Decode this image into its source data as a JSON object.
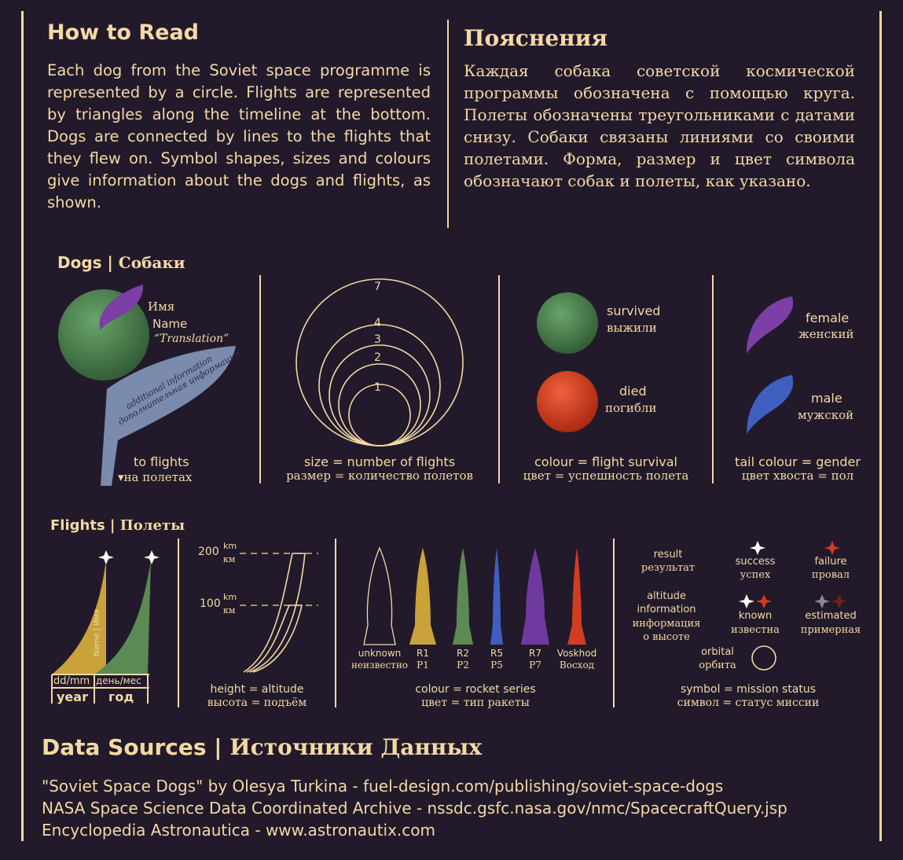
{
  "how_to_read": {
    "title_en": "How to Read",
    "body_en": "Each dog from the Soviet space programme is represented by a circle.  Flights are represented by  triangles along the timeline at the bottom.  Dogs are connected by lines to the flights that they flew  on. Symbol shapes, sizes and colours give information about the dogs and flights, as shown.",
    "title_ru": "Пояснения",
    "body_ru": "Каждая собака советской космической программы обозначена с помощью круга. Полеты обозначены треугольниками с датами снизу. Собаки связаны линиями со своими полетами. Форма, размер и цвет символа обозначают собак и полеты, как указано."
  },
  "dogs": {
    "heading_en": "Dogs",
    "heading_sep": " | ",
    "heading_ru": "Собаки",
    "anatomy": {
      "name_ru": "Имя",
      "name_en": "Name",
      "translation": "“Translation”",
      "additional_en": "additional information",
      "additional_ru": "дополнительная информация",
      "to_flights_en": "to flights",
      "to_flights_ru": "на полетах"
    },
    "size": {
      "numbers": [
        "7",
        "4",
        "3",
        "2",
        "1"
      ],
      "caption_en": "size = number of flights",
      "caption_ru": "размер = количество полетов"
    },
    "colour": {
      "survived_en": "survived",
      "survived_ru": "выжили",
      "died_en": "died",
      "died_ru": "погибли",
      "caption_en": "colour = flight survival",
      "caption_ru": "цвет = успешность полета",
      "survived_color": "#4a7a4b",
      "died_color": "#d23c22"
    },
    "tail": {
      "female_en": "female",
      "female_ru": "женский",
      "male_en": "male",
      "male_ru": "мужской",
      "caption_en": "tail colour = gender",
      "caption_ru": "цвет хвоста = пол",
      "female_color": "#7b3fa5",
      "male_color": "#3f5fc0"
    }
  },
  "flights": {
    "heading_en": "Flights",
    "heading_sep": " | ",
    "heading_ru": "Полеты",
    "date": {
      "name_label": "Name | Имя",
      "ddmm": "dd/mm",
      "ddmm_ru": "день/мес",
      "year": "year",
      "year_ru": "год"
    },
    "height": {
      "tick_200": "200",
      "tick_100": "100",
      "unit_en": "km",
      "unit_ru": "км",
      "caption_en": "height = altitude",
      "caption_ru": "высота = подъём"
    },
    "rockets": {
      "items": [
        {
          "en": "unknown",
          "ru": "неизвестно",
          "color": "none"
        },
        {
          "en": "R1",
          "ru": "Р1",
          "color": "#c9a23a"
        },
        {
          "en": "R2",
          "ru": "Р2",
          "color": "#5b8a55"
        },
        {
          "en": "R5",
          "ru": "Р5",
          "color": "#3f5fc0"
        },
        {
          "en": "R7",
          "ru": "Р7",
          "color": "#6e3aa0"
        },
        {
          "en": "Voskhod",
          "ru": "Восход",
          "color": "#d23c22"
        }
      ],
      "caption_en": "colour = rocket series",
      "caption_ru": "цвет = тип ракеты"
    },
    "status": {
      "result_en": "result",
      "result_ru": "результат",
      "success_en": "success",
      "success_ru": "успех",
      "failure_en": "failure",
      "failure_ru": "провал",
      "altitude_en": "altitude information",
      "altitude_ru": "информация о высоте",
      "known_en": "known",
      "known_ru": "известна",
      "estimated_en": "estimated",
      "estimated_ru": "примерная",
      "orbital_en": "orbital",
      "orbital_ru": "орбита",
      "caption_en": "symbol = mission status",
      "caption_ru": "символ = статус миссии"
    }
  },
  "sources": {
    "heading_en": "Data Sources",
    "heading_sep": " | ",
    "heading_ru": "Источники Данных",
    "lines": [
      "\"Soviet Space Dogs\" by Olesya Turkina - fuel-design.com/publishing/soviet-space-dogs",
      "NASA Space Science Data Coordinated Archive - nssdc.gsfc.nasa.gov/nmc/SpacecraftQuery.jsp",
      "Encyclopedia Astronautica - www.astronautix.com"
    ]
  },
  "colors": {
    "background": "#221a2b",
    "ink": "#f3d9a4"
  }
}
